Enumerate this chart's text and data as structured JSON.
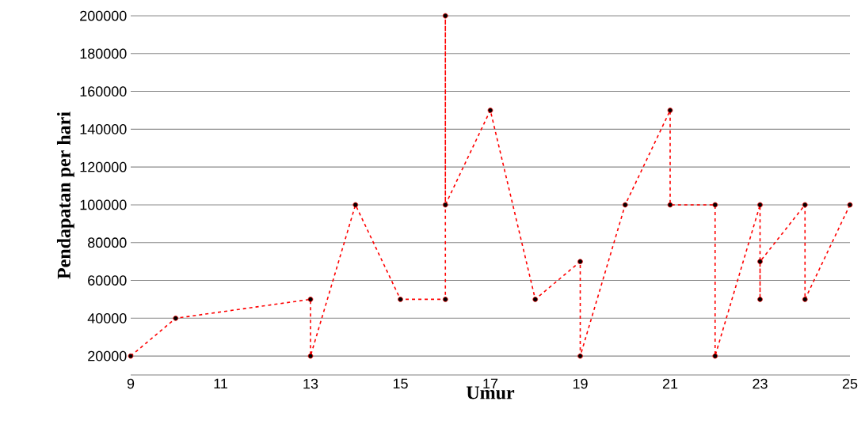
{
  "chart_data": {
    "type": "line",
    "xlabel": "Umur",
    "ylabel": "Pendapatan per hari",
    "x": [
      9,
      10,
      13,
      13,
      14,
      15,
      16,
      16,
      16,
      17,
      18,
      19,
      19,
      20,
      21,
      21,
      22,
      22,
      23,
      23,
      23,
      24,
      24,
      25
    ],
    "series": [
      {
        "color": "#ff0000",
        "values": [
          20000,
          40000,
          50000,
          20000,
          100000,
          50000,
          50000,
          200000,
          100000,
          150000,
          50000,
          70000,
          20000,
          100000,
          150000,
          100000,
          100000,
          20000,
          100000,
          50000,
          70000,
          100000,
          50000,
          100000
        ]
      }
    ],
    "xlim": [
      9,
      25
    ],
    "xticks": [
      9,
      11,
      13,
      15,
      17,
      19,
      21,
      23,
      25
    ],
    "ylim": [
      10000,
      200000
    ],
    "yticks": [
      20000,
      40000,
      60000,
      80000,
      100000,
      120000,
      140000,
      160000,
      180000,
      200000
    ],
    "grid": "y",
    "marker": "circle",
    "line_style": "dashed"
  }
}
